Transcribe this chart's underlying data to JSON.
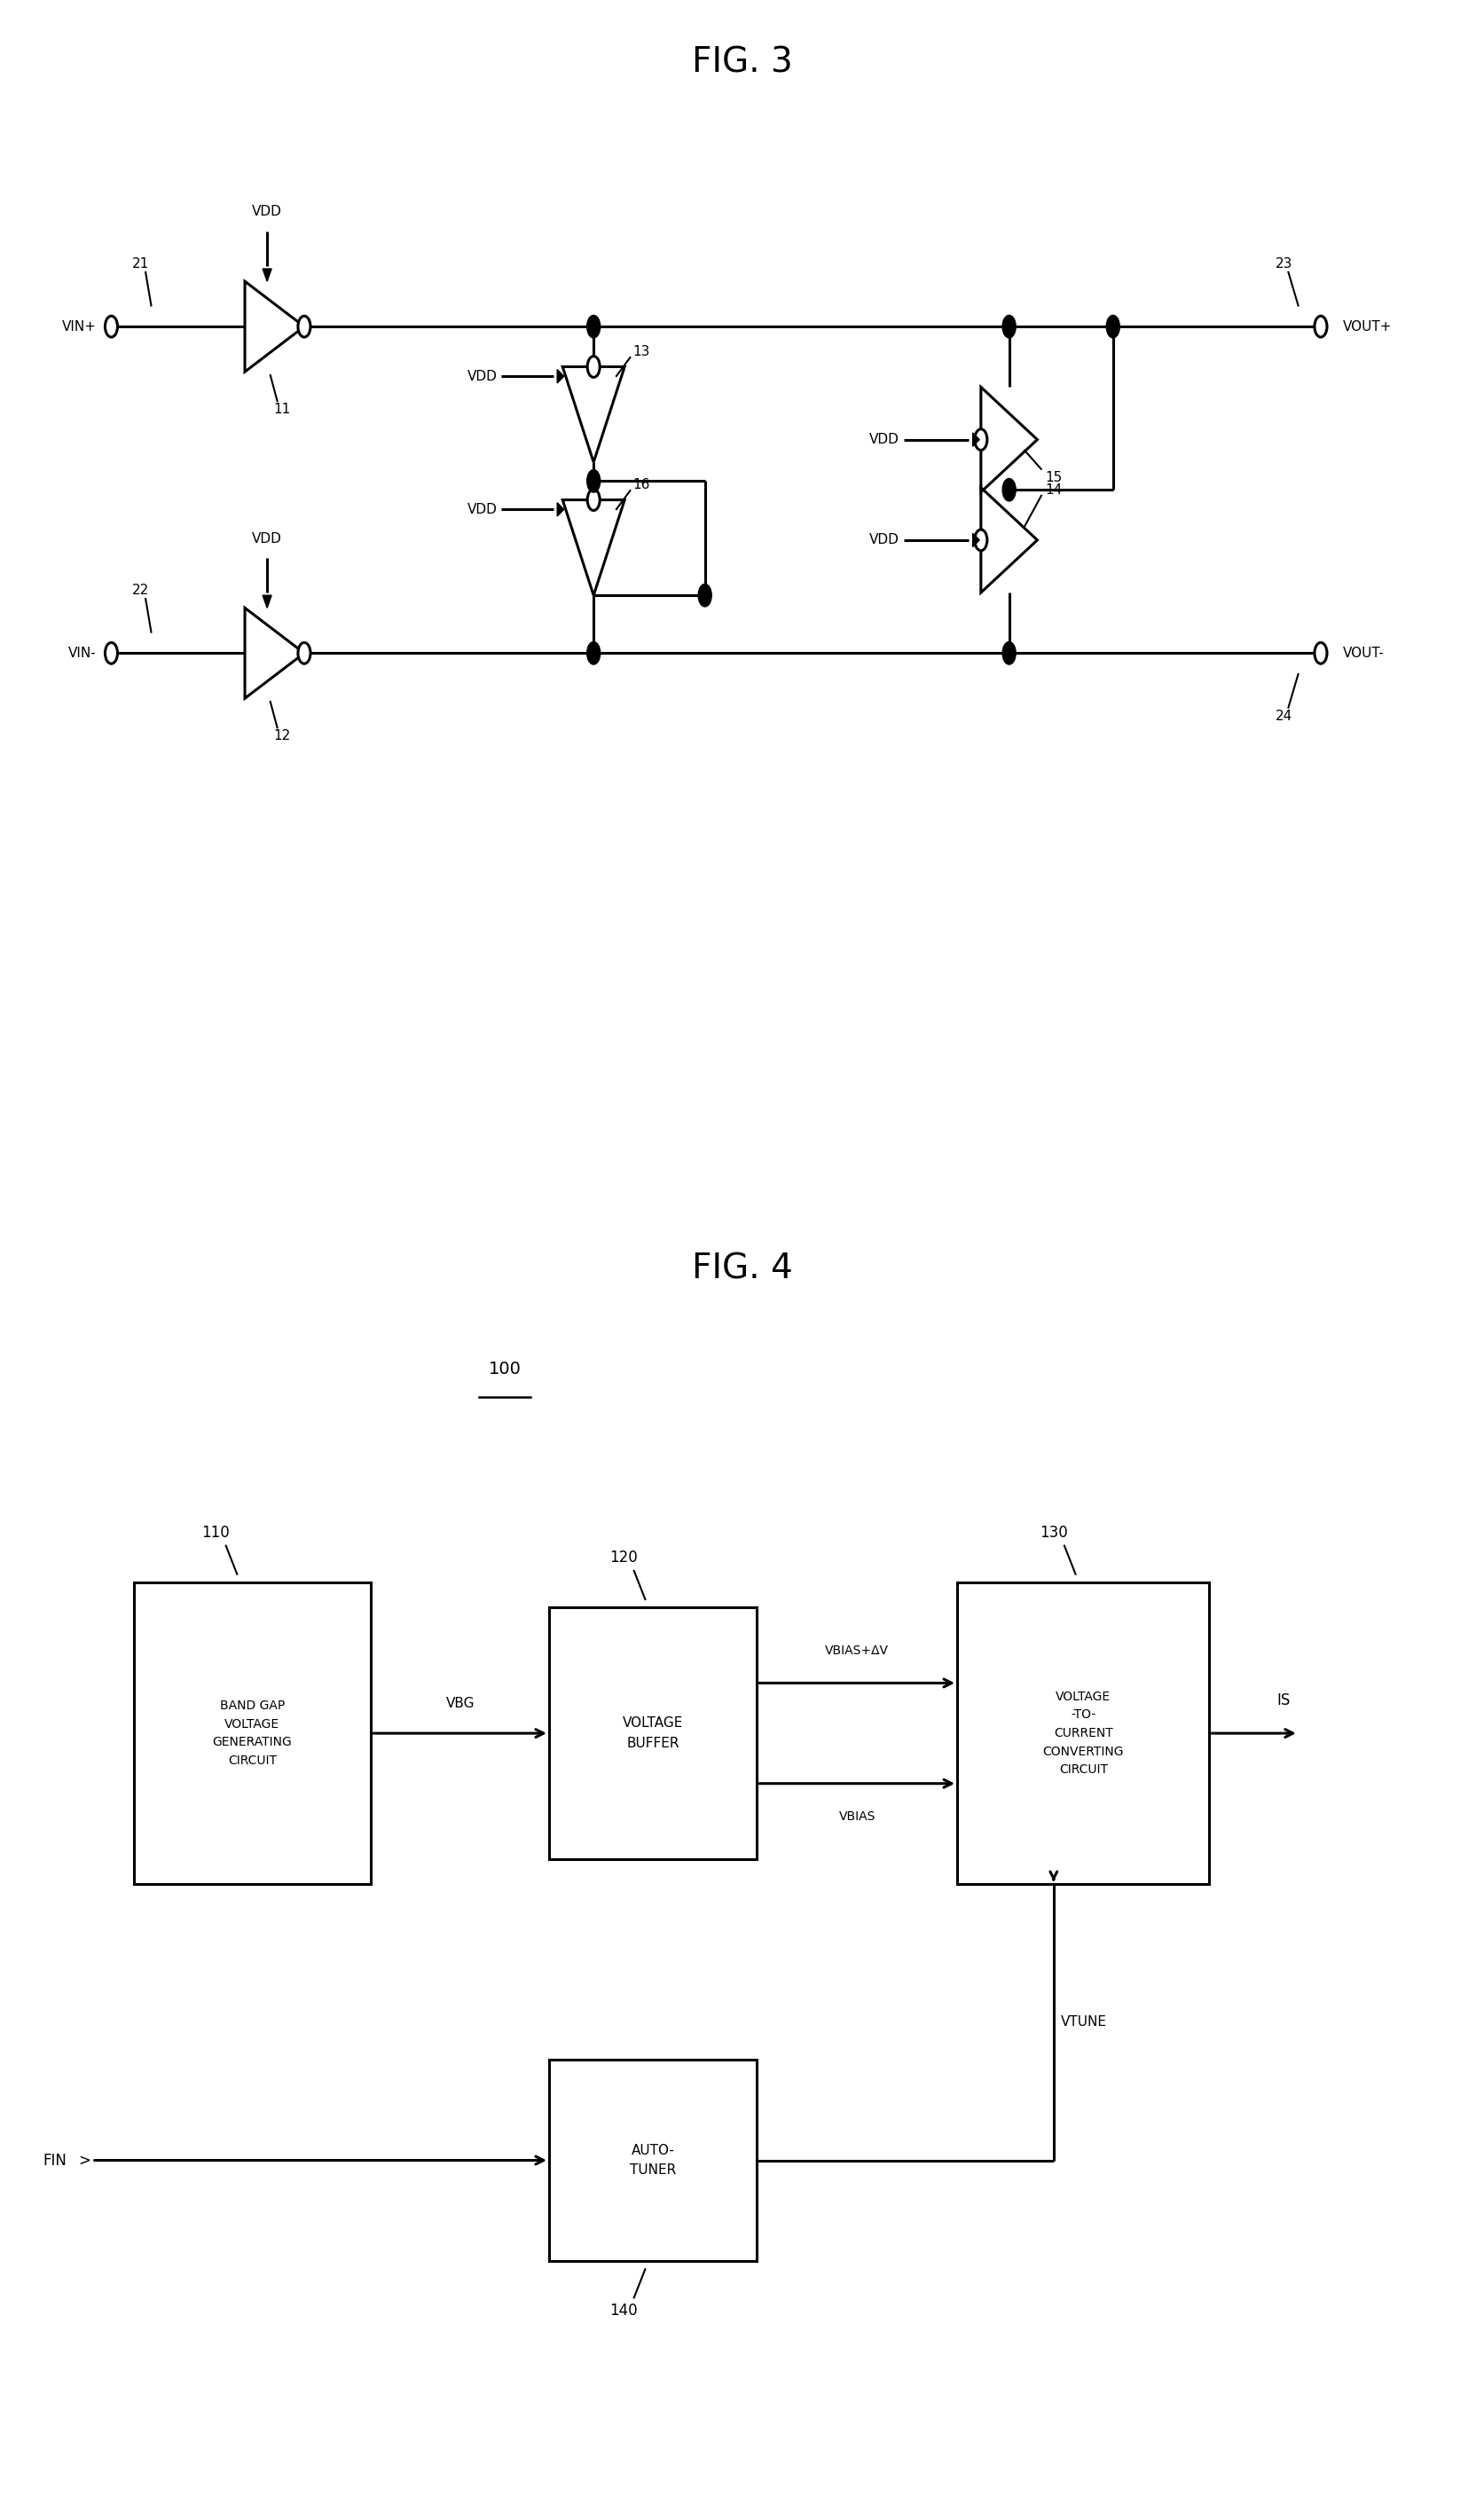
{
  "bg_color": "#ffffff",
  "fig_width": 16.73,
  "fig_height": 28.32,
  "fig3_title": "FIG. 3",
  "fig4_title": "FIG. 4",
  "label_100": "100",
  "label_110": "110",
  "label_120": "120",
  "label_130": "130",
  "label_140": "140",
  "box_110_text": "BAND GAP\nVOLTAGE\nGENERATING\nCIRCUIT",
  "box_120_text": "VOLTAGE\nBUFFER",
  "box_130_text": "VOLTAGE\n-TO-\nCURRENT\nCONVERTING\nCIRCUIT",
  "box_140_text": "AUTO-\nTUNER",
  "arrow_vbg": "VBG",
  "arrow_vbias_dv": "VBIAS+ΔV",
  "arrow_vbias": "VBIAS",
  "arrow_vtune": "VTUNE",
  "arrow_is": "IS",
  "arrow_fin": "FIN",
  "line_color": "#000000",
  "lw": 2.2
}
